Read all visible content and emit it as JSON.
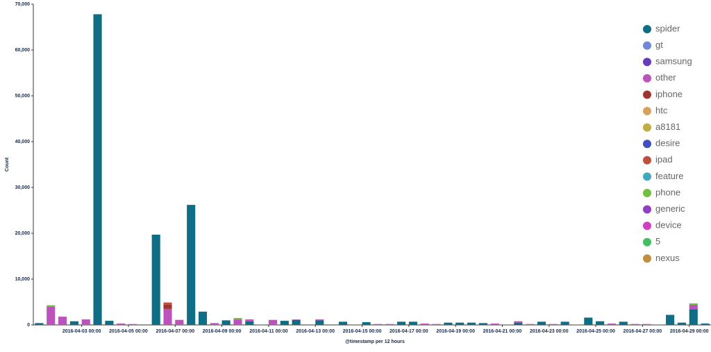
{
  "chart_data": {
    "type": "stacked_bar",
    "x_label": "@timestamp per 12 hours",
    "y_label": "Count",
    "categories": [
      null,
      null,
      null,
      null,
      "2016-04-03 00:00",
      null,
      null,
      null,
      "2016-04-05 00:00",
      null,
      null,
      null,
      "2016-04-07 00:00",
      null,
      null,
      null,
      "2016-04-09 00:00",
      null,
      null,
      null,
      "2016-04-11 00:00",
      null,
      null,
      null,
      "2016-04-13 00:00",
      null,
      null,
      null,
      "2016-04-15 00:00",
      null,
      null,
      null,
      "2016-04-17 00:00",
      null,
      null,
      null,
      "2016-04-19 00:00",
      null,
      null,
      null,
      "2016-04-21 00:00",
      null,
      null,
      null,
      "2016-04-23 00:00",
      null,
      null,
      null,
      "2016-04-25 00:00",
      null,
      null,
      null,
      "2016-04-27 00:00",
      null,
      null,
      null,
      "2016-04-29 00:00",
      null
    ],
    "series": [
      {
        "name": "spider",
        "color": "#106d86",
        "values": [
          400,
          0,
          0,
          800,
          0,
          67800,
          900,
          0,
          0,
          0,
          19700,
          0,
          0,
          26200,
          2900,
          0,
          1000,
          0,
          800,
          0,
          0,
          900,
          1100,
          0,
          1000,
          0,
          700,
          0,
          600,
          0,
          0,
          700,
          700,
          0,
          0,
          500,
          500,
          500,
          400,
          0,
          0,
          500,
          0,
          700,
          0,
          700,
          0,
          1600,
          800,
          0,
          700,
          0,
          0,
          0,
          2200,
          500,
          3400,
          300
        ]
      },
      {
        "name": "gt",
        "color": "#6f87d8",
        "values": [
          0,
          0,
          0,
          0,
          0,
          0,
          0,
          0,
          0,
          0,
          0,
          0,
          0,
          0,
          0,
          0,
          0,
          0,
          0,
          0,
          0,
          0,
          0,
          0,
          0,
          0,
          0,
          0,
          0,
          0,
          0,
          0,
          0,
          0,
          0,
          0,
          0,
          0,
          0,
          0,
          0,
          0,
          0,
          0,
          0,
          0,
          0,
          0,
          0,
          0,
          0,
          0,
          0,
          0,
          0,
          0,
          0,
          0
        ]
      },
      {
        "name": "samsung",
        "color": "#663db8",
        "values": [
          0,
          0,
          0,
          0,
          0,
          0,
          0,
          0,
          0,
          0,
          0,
          0,
          0,
          0,
          0,
          0,
          0,
          0,
          0,
          0,
          0,
          0,
          0,
          0,
          0,
          0,
          0,
          0,
          0,
          0,
          0,
          0,
          0,
          0,
          0,
          0,
          0,
          0,
          0,
          0,
          0,
          0,
          0,
          0,
          0,
          0,
          0,
          0,
          0,
          0,
          0,
          0,
          0,
          0,
          0,
          0,
          0,
          0
        ]
      },
      {
        "name": "other",
        "color": "#bc52bc",
        "values": [
          0,
          4000,
          1800,
          0,
          1200,
          0,
          0,
          300,
          200,
          0,
          0,
          3500,
          1100,
          0,
          0,
          400,
          0,
          1200,
          400,
          100,
          1100,
          0,
          100,
          0,
          200,
          0,
          0,
          100,
          0,
          200,
          200,
          0,
          0,
          300,
          200,
          0,
          0,
          0,
          0,
          300,
          100,
          300,
          200,
          0,
          200,
          0,
          100,
          0,
          0,
          300,
          0,
          200,
          200,
          100,
          0,
          0,
          1000,
          0
        ]
      },
      {
        "name": "iphone",
        "color": "#9e3533",
        "values": [
          0,
          0,
          0,
          0,
          0,
          0,
          0,
          0,
          0,
          0,
          0,
          900,
          0,
          0,
          0,
          0,
          0,
          0,
          0,
          0,
          0,
          0,
          0,
          0,
          0,
          0,
          0,
          0,
          0,
          0,
          0,
          0,
          0,
          0,
          0,
          0,
          0,
          0,
          0,
          0,
          0,
          0,
          0,
          0,
          0,
          0,
          0,
          0,
          0,
          0,
          0,
          0,
          0,
          0,
          0,
          0,
          0,
          0
        ]
      },
      {
        "name": "htc",
        "color": "#daa05d",
        "values": [
          0,
          0,
          0,
          0,
          0,
          0,
          0,
          0,
          0,
          0,
          0,
          0,
          0,
          0,
          0,
          0,
          0,
          0,
          0,
          0,
          0,
          0,
          0,
          0,
          0,
          0,
          0,
          0,
          0,
          0,
          0,
          0,
          0,
          0,
          0,
          0,
          0,
          0,
          0,
          0,
          0,
          0,
          0,
          0,
          0,
          0,
          0,
          0,
          0,
          0,
          0,
          0,
          0,
          0,
          0,
          0,
          0,
          0
        ]
      },
      {
        "name": "a8181",
        "color": "#bfaf40",
        "values": [
          0,
          0,
          0,
          0,
          0,
          0,
          0,
          0,
          0,
          0,
          0,
          0,
          0,
          0,
          0,
          0,
          0,
          0,
          0,
          0,
          0,
          0,
          0,
          0,
          0,
          0,
          0,
          0,
          0,
          0,
          0,
          0,
          0,
          0,
          0,
          0,
          0,
          0,
          0,
          0,
          0,
          0,
          0,
          0,
          0,
          0,
          0,
          0,
          0,
          0,
          0,
          0,
          0,
          0,
          0,
          0,
          0,
          0
        ]
      },
      {
        "name": "desire",
        "color": "#4050bf",
        "values": [
          0,
          0,
          0,
          0,
          0,
          0,
          0,
          0,
          0,
          0,
          0,
          0,
          0,
          0,
          0,
          0,
          0,
          0,
          0,
          0,
          0,
          0,
          0,
          0,
          0,
          0,
          0,
          0,
          0,
          0,
          0,
          0,
          0,
          0,
          0,
          0,
          0,
          0,
          0,
          0,
          0,
          0,
          0,
          0,
          0,
          0,
          0,
          0,
          0,
          0,
          0,
          0,
          0,
          0,
          0,
          0,
          0,
          0
        ]
      },
      {
        "name": "ipad",
        "color": "#bf5040",
        "values": [
          0,
          0,
          0,
          0,
          0,
          0,
          0,
          0,
          0,
          0,
          0,
          500,
          0,
          0,
          0,
          0,
          0,
          0,
          0,
          0,
          0,
          0,
          0,
          0,
          0,
          0,
          0,
          0,
          0,
          0,
          0,
          0,
          0,
          0,
          0,
          0,
          0,
          0,
          0,
          0,
          0,
          0,
          0,
          0,
          0,
          0,
          0,
          0,
          0,
          0,
          0,
          0,
          0,
          0,
          0,
          0,
          0,
          0
        ]
      },
      {
        "name": "feature",
        "color": "#40a8c0",
        "values": [
          0,
          0,
          0,
          0,
          0,
          0,
          0,
          0,
          0,
          0,
          0,
          0,
          0,
          0,
          0,
          0,
          0,
          0,
          0,
          0,
          0,
          0,
          0,
          0,
          0,
          0,
          0,
          0,
          0,
          0,
          0,
          0,
          0,
          0,
          0,
          0,
          0,
          0,
          0,
          0,
          0,
          0,
          0,
          0,
          0,
          0,
          0,
          0,
          0,
          0,
          0,
          0,
          0,
          0,
          0,
          0,
          0,
          0
        ]
      },
      {
        "name": "phone",
        "color": "#70c040",
        "values": [
          0,
          300,
          0,
          0,
          0,
          0,
          0,
          0,
          0,
          0,
          0,
          0,
          0,
          0,
          0,
          0,
          0,
          300,
          0,
          0,
          0,
          0,
          0,
          0,
          0,
          0,
          0,
          0,
          0,
          0,
          0,
          0,
          0,
          0,
          0,
          0,
          0,
          0,
          0,
          0,
          0,
          0,
          0,
          0,
          0,
          0,
          0,
          0,
          0,
          0,
          0,
          0,
          0,
          0,
          0,
          0,
          300,
          0
        ]
      },
      {
        "name": "generic",
        "color": "#9040c0",
        "values": [
          0,
          0,
          0,
          0,
          0,
          0,
          0,
          0,
          0,
          0,
          0,
          0,
          0,
          0,
          0,
          0,
          0,
          0,
          0,
          0,
          0,
          0,
          0,
          0,
          0,
          0,
          0,
          0,
          0,
          0,
          0,
          0,
          0,
          0,
          0,
          0,
          0,
          0,
          0,
          0,
          0,
          0,
          0,
          0,
          0,
          0,
          0,
          0,
          0,
          0,
          0,
          0,
          0,
          0,
          0,
          0,
          0,
          0
        ]
      },
      {
        "name": "device",
        "color": "#d040c0",
        "values": [
          0,
          0,
          0,
          0,
          0,
          0,
          0,
          0,
          0,
          0,
          0,
          0,
          0,
          0,
          0,
          0,
          0,
          0,
          0,
          0,
          0,
          0,
          0,
          0,
          0,
          0,
          0,
          0,
          0,
          0,
          0,
          0,
          0,
          0,
          0,
          0,
          0,
          0,
          0,
          0,
          0,
          0,
          0,
          0,
          0,
          0,
          0,
          0,
          0,
          0,
          0,
          0,
          0,
          0,
          0,
          0,
          0,
          0
        ]
      },
      {
        "name": "5",
        "color": "#40c060",
        "values": [
          0,
          0,
          0,
          0,
          0,
          0,
          0,
          0,
          0,
          0,
          0,
          0,
          0,
          0,
          0,
          0,
          0,
          0,
          0,
          0,
          0,
          0,
          0,
          0,
          0,
          0,
          0,
          0,
          0,
          0,
          0,
          0,
          0,
          0,
          0,
          0,
          0,
          0,
          0,
          0,
          0,
          0,
          0,
          0,
          0,
          0,
          0,
          0,
          0,
          0,
          0,
          0,
          0,
          0,
          0,
          0,
          0,
          0
        ]
      },
      {
        "name": "nexus",
        "color": "#c09040",
        "values": [
          0,
          0,
          0,
          0,
          0,
          0,
          0,
          0,
          0,
          0,
          0,
          0,
          0,
          0,
          0,
          0,
          0,
          0,
          0,
          0,
          0,
          0,
          0,
          0,
          0,
          0,
          0,
          0,
          0,
          0,
          0,
          0,
          0,
          0,
          0,
          0,
          0,
          0,
          0,
          0,
          0,
          0,
          0,
          0,
          0,
          0,
          0,
          0,
          0,
          0,
          0,
          0,
          0,
          0,
          0,
          0,
          0,
          0
        ]
      }
    ],
    "ylim": [
      0,
      70000
    ],
    "yticks": [
      0,
      {
        "value": 10000,
        "label": "10,000"
      },
      {
        "value": 20000,
        "label": "20,000"
      },
      {
        "value": 30000,
        "label": "30,000"
      },
      {
        "value": 40000,
        "label": "40,000"
      },
      {
        "value": 50000,
        "label": "50,000"
      },
      {
        "value": 60000,
        "label": "60,000"
      },
      {
        "value": 70000,
        "label": "70,000"
      }
    ],
    "legend": "right"
  }
}
